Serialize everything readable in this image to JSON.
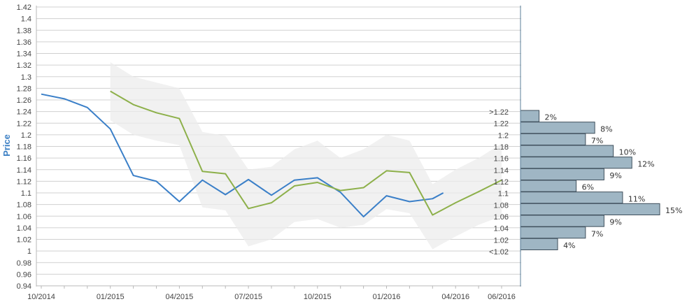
{
  "chart_data": {
    "type": "line",
    "ylabel": "Price",
    "xlabel": "",
    "ylim": [
      0.94,
      1.42
    ],
    "y_ticks": [
      "1.42",
      "1.4",
      "1.38",
      "1.36",
      "1.34",
      "1.32",
      "1.3",
      "1.28",
      "1.26",
      "1.24",
      "1.22",
      "1.2",
      "1.18",
      "1.16",
      "1.14",
      "1.12",
      "1.1",
      "1.08",
      "1.06",
      "1.04",
      "1.02",
      "1",
      "0.98",
      "0.96",
      "0.94"
    ],
    "x_range": [
      "2014-10",
      "2016-06"
    ],
    "x_tick_labels": [
      "10/2014",
      "01/2015",
      "04/2015",
      "07/2015",
      "10/2015",
      "01/2016",
      "04/2016",
      "06/2016"
    ],
    "grid": true,
    "colors": {
      "actual": "#3a7fc8",
      "forecast": "#8db04a",
      "band": "#ececec",
      "histogram": "#9fb6c4"
    },
    "series": [
      {
        "role": "actual",
        "x": [
          "2014-10",
          "2014-11",
          "2014-12",
          "2015-01",
          "2015-02",
          "2015-03",
          "2015-04",
          "2015-05",
          "2015-06",
          "2015-07",
          "2015-08",
          "2015-09",
          "2015-10",
          "2015-11",
          "2015-12",
          "2016-01",
          "2016-02",
          "2016-03",
          "2016-03-15"
        ],
        "values": [
          1.27,
          1.262,
          1.247,
          1.21,
          1.13,
          1.12,
          1.085,
          1.122,
          1.097,
          1.123,
          1.096,
          1.122,
          1.126,
          1.101,
          1.059,
          1.095,
          1.085,
          1.09,
          1.1
        ]
      },
      {
        "role": "forecast",
        "x": [
          "2015-01",
          "2015-02",
          "2015-03",
          "2015-04",
          "2015-05",
          "2015-06",
          "2015-07",
          "2015-08",
          "2015-09",
          "2015-10",
          "2015-11",
          "2015-12",
          "2016-01",
          "2016-02",
          "2016-03",
          "2016-04",
          "2016-05",
          "2016-06"
        ],
        "values": [
          1.275,
          1.252,
          1.238,
          1.228,
          1.137,
          1.133,
          1.073,
          1.083,
          1.112,
          1.118,
          1.104,
          1.109,
          1.138,
          1.135,
          1.062,
          1.083,
          1.102,
          1.122
        ],
        "band_upper": [
          1.325,
          1.3,
          1.29,
          1.28,
          1.205,
          1.198,
          1.14,
          1.145,
          1.175,
          1.19,
          1.16,
          1.175,
          1.2,
          1.19,
          1.115,
          1.14,
          1.16,
          1.185
        ],
        "band_lower": [
          1.225,
          1.2,
          1.19,
          1.182,
          1.075,
          1.07,
          1.008,
          1.02,
          1.05,
          1.055,
          1.04,
          1.045,
          1.072,
          1.065,
          1.003,
          1.025,
          1.045,
          1.06
        ]
      }
    ],
    "histogram": {
      "bins": [
        ">1.22",
        "1.22",
        "1.2",
        "1.18",
        "1.16",
        "1.14",
        "1.12",
        "1.1",
        "1.08",
        "1.06",
        "1.04",
        "1.02",
        "<1.02"
      ],
      "percent_labels": [
        "2%",
        "8%",
        "7%",
        "10%",
        "12%",
        "9%",
        "6%",
        "11%",
        "15%",
        "9%",
        "7%",
        "4%"
      ],
      "values": [
        2,
        8,
        7,
        10,
        12,
        9,
        6,
        11,
        15,
        9,
        7,
        4
      ]
    }
  }
}
